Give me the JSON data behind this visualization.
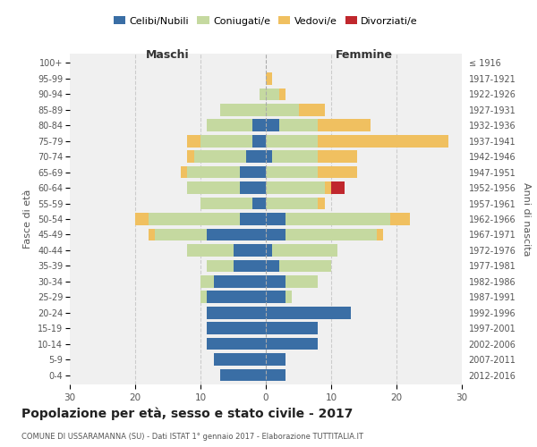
{
  "age_groups": [
    "0-4",
    "5-9",
    "10-14",
    "15-19",
    "20-24",
    "25-29",
    "30-34",
    "35-39",
    "40-44",
    "45-49",
    "50-54",
    "55-59",
    "60-64",
    "65-69",
    "70-74",
    "75-79",
    "80-84",
    "85-89",
    "90-94",
    "95-99",
    "100+"
  ],
  "birth_years": [
    "2012-2016",
    "2007-2011",
    "2002-2006",
    "1997-2001",
    "1992-1996",
    "1987-1991",
    "1982-1986",
    "1977-1981",
    "1972-1976",
    "1967-1971",
    "1962-1966",
    "1957-1961",
    "1952-1956",
    "1947-1951",
    "1942-1946",
    "1937-1941",
    "1932-1936",
    "1927-1931",
    "1922-1926",
    "1917-1921",
    "≤ 1916"
  ],
  "males": {
    "celibi": [
      7,
      8,
      9,
      9,
      9,
      9,
      8,
      5,
      5,
      9,
      4,
      2,
      4,
      4,
      3,
      2,
      2,
      0,
      0,
      0,
      0
    ],
    "coniugati": [
      0,
      0,
      0,
      0,
      0,
      1,
      2,
      4,
      7,
      8,
      14,
      8,
      8,
      8,
      8,
      8,
      7,
      7,
      1,
      0,
      0
    ],
    "vedovi": [
      0,
      0,
      0,
      0,
      0,
      0,
      0,
      0,
      0,
      1,
      2,
      0,
      0,
      1,
      1,
      2,
      0,
      0,
      0,
      0,
      0
    ],
    "divorziati": [
      0,
      0,
      0,
      0,
      0,
      0,
      0,
      0,
      0,
      0,
      0,
      0,
      0,
      0,
      0,
      0,
      0,
      0,
      0,
      0,
      0
    ]
  },
  "females": {
    "nubili": [
      3,
      3,
      8,
      8,
      13,
      3,
      3,
      2,
      1,
      3,
      3,
      0,
      0,
      0,
      1,
      0,
      2,
      0,
      0,
      0,
      0
    ],
    "coniugate": [
      0,
      0,
      0,
      0,
      0,
      1,
      5,
      8,
      10,
      14,
      16,
      8,
      9,
      8,
      7,
      8,
      6,
      5,
      2,
      0,
      0
    ],
    "vedove": [
      0,
      0,
      0,
      0,
      0,
      0,
      0,
      0,
      0,
      1,
      3,
      1,
      1,
      6,
      6,
      20,
      8,
      4,
      1,
      1,
      0
    ],
    "divorziate": [
      0,
      0,
      0,
      0,
      0,
      0,
      0,
      0,
      0,
      0,
      0,
      0,
      2,
      0,
      0,
      0,
      0,
      0,
      0,
      0,
      0
    ]
  },
  "color_celibi": "#3a6ea5",
  "color_coniugati": "#c5d9a0",
  "color_vedovi": "#f0c060",
  "color_divorziati": "#c0272d",
  "xlim": 30,
  "title": "Popolazione per età, sesso e stato civile - 2017",
  "subtitle": "COMUNE DI USSARAMANNA (SU) - Dati ISTAT 1° gennaio 2017 - Elaborazione TUTTITALIA.IT",
  "ylabel": "Fasce di età",
  "y2label": "Anni di nascita",
  "legend_labels": [
    "Celibi/Nubili",
    "Coniugati/e",
    "Vedovi/e",
    "Divorziati/e"
  ],
  "maschi_label": "Maschi",
  "femmine_label": "Femmine",
  "background_color": "#ffffff",
  "plot_bg_color": "#f0f0f0"
}
